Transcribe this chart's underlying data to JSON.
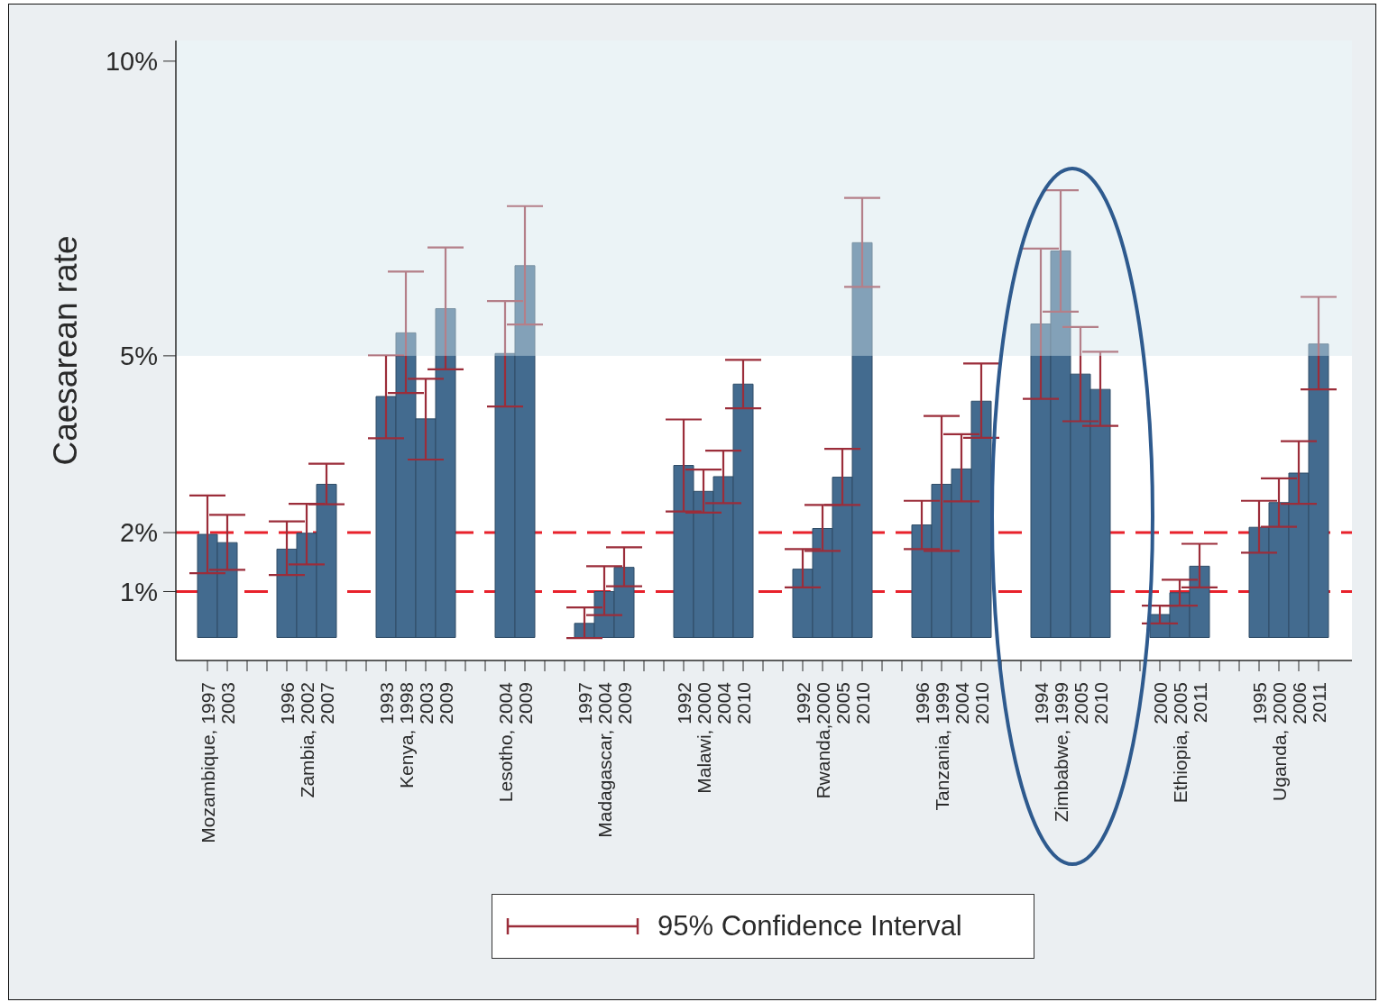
{
  "chart_data": {
    "type": "bar",
    "ylabel": "Caesarean rate",
    "categories": [
      "Mozambique, 1997",
      "2003",
      null,
      null,
      "1996",
      "Zambia, 2002",
      "2007",
      null,
      null,
      "1993",
      "Kenya, 1998",
      "2003",
      "2009",
      null,
      null,
      "Lesotho, 2004",
      "2009",
      null,
      null,
      "1997",
      "Madagascar, 2004",
      "2009",
      null,
      null,
      "1992",
      "Malawi, 2000",
      "2004",
      "2010",
      null,
      null,
      "1992",
      "Rwanda,2000",
      "2005",
      "2010",
      null,
      null,
      "1996",
      "Tanzania, 1999",
      "2004",
      "2010",
      null,
      null,
      "1994",
      "Zimbabwe, 1999",
      "2005",
      "2010",
      null,
      null,
      "2000",
      "Ethiopia, 2005",
      "2011",
      null,
      null,
      "1995",
      "Uganda, 2000",
      "2006",
      "2011"
    ],
    "base": [
      0.22,
      0.22,
      null,
      null,
      0.22,
      0.22,
      0.22,
      null,
      null,
      0.22,
      0.22,
      0.22,
      0.22,
      null,
      null,
      0.22,
      0.22,
      null,
      null,
      0.22,
      0.22,
      0.22,
      null,
      null,
      0.22,
      0.22,
      0.22,
      0.22,
      null,
      null,
      0.22,
      0.22,
      0.22,
      0.22,
      null,
      null,
      0.22,
      0.22,
      0.22,
      0.22,
      null,
      null,
      0.22,
      0.22,
      0.22,
      0.22,
      null,
      null,
      0.22,
      0.22,
      0.22,
      null,
      null,
      0.22,
      0.22,
      0.22,
      0.22
    ],
    "values": [
      1.75,
      1.61,
      null,
      null,
      1.5,
      1.77,
      2.6,
      null,
      null,
      4.09,
      5.17,
      3.71,
      5.58,
      null,
      null,
      4.82,
      6.31,
      null,
      null,
      0.24,
      0.78,
      1.19,
      null,
      null,
      2.92,
      2.48,
      2.73,
      4.3,
      null,
      null,
      1.16,
      1.85,
      2.72,
      6.7,
      null,
      null,
      1.91,
      2.6,
      2.86,
      4.01,
      null,
      null,
      5.32,
      6.56,
      4.47,
      4.21,
      null,
      null,
      0.39,
      0.76,
      1.21,
      null,
      null,
      1.87,
      2.29,
      2.79,
      4.98
    ],
    "errors": [
      [
        1.31,
        2.63
      ],
      [
        1.37,
        2.3
      ],
      null,
      null,
      [
        1.28,
        2.19
      ],
      [
        1.46,
        2.49
      ],
      [
        2.48,
        3.17
      ],
      null,
      null,
      [
        3.6,
        5.01
      ],
      [
        4.37,
        6.43
      ],
      [
        3.24,
        4.61
      ],
      [
        4.77,
        6.84
      ],
      null,
      null,
      [
        4.14,
        5.93
      ],
      [
        5.53,
        7.54
      ],
      null,
      null,
      [
        0.21,
        0.73
      ],
      [
        0.6,
        1.43
      ],
      [
        1.09,
        1.75
      ],
      null,
      null,
      [
        2.36,
        3.92
      ],
      [
        2.34,
        3.07
      ],
      [
        2.5,
        3.39
      ],
      [
        4.11,
        4.93
      ],
      null,
      null,
      [
        1.07,
        1.72
      ],
      [
        1.69,
        2.47
      ],
      [
        2.47,
        3.42
      ],
      [
        6.17,
        7.68
      ],
      null,
      null,
      [
        1.72,
        2.54
      ],
      [
        1.69,
        3.98
      ],
      [
        2.53,
        3.67
      ],
      [
        3.61,
        4.87
      ],
      null,
      null,
      [
        4.27,
        6.82
      ],
      [
        5.75,
        7.81
      ],
      [
        3.89,
        5.49
      ],
      [
        3.81,
        5.07
      ],
      null,
      null,
      [
        0.46,
        0.76
      ],
      [
        0.76,
        1.2
      ],
      [
        1.07,
        1.81
      ],
      null,
      null,
      [
        1.66,
        2.54
      ],
      [
        2.1,
        2.92
      ],
      [
        2.49,
        3.55
      ],
      [
        4.43,
        6.0
      ]
    ],
    "color": "#436b8f",
    "ylim": [
      -0.17,
      10.35
    ],
    "yticks": [
      {
        "value": 1,
        "label": "1%"
      },
      {
        "value": 2,
        "label": "2%"
      },
      {
        "value": 5,
        "label": "5%"
      },
      {
        "value": 10,
        "label": "10%"
      }
    ],
    "ref_lines": [
      {
        "axis": "y",
        "value": 2,
        "color": "#e8212b",
        "line_style": "dashed"
      },
      {
        "axis": "y",
        "value": 1,
        "color": "#e8212b",
        "line_style": "dashed"
      }
    ],
    "bands": [
      {
        "axis": "y",
        "from": 5,
        "to": 10.35,
        "color": "#d3e4ec"
      }
    ],
    "legend_title": "95% Confidence Interval"
  }
}
